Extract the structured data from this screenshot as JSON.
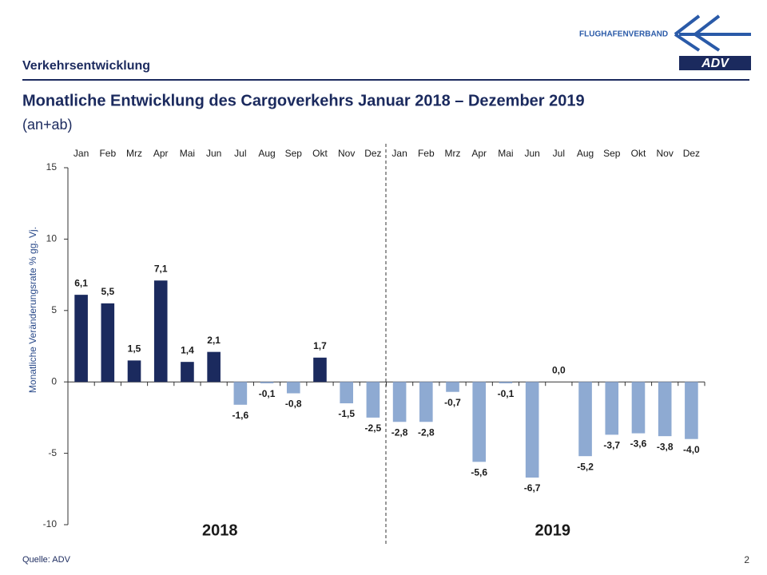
{
  "header": {
    "section": "Verkehrsentwicklung",
    "org": "FLUGHAFENVERBAND",
    "logo": "ADV"
  },
  "chart_data": {
    "type": "bar",
    "title": "Monatliche Entwicklung des Cargoverkehrs Januar 2018 – Dezember 2019",
    "subtitle": "(an+ab)",
    "y_label": "Monatliche Veränderungsrate % gg. Vj.",
    "groups": [
      "2018",
      "2019"
    ],
    "categories": [
      "Jan",
      "Feb",
      "Mrz",
      "Apr",
      "Mai",
      "Jun",
      "Jul",
      "Aug",
      "Sep",
      "Okt",
      "Nov",
      "Dez",
      "Jan",
      "Feb",
      "Mrz",
      "Apr",
      "Mai",
      "Jun",
      "Jul",
      "Aug",
      "Sep",
      "Okt",
      "Nov",
      "Dez"
    ],
    "values": [
      6.1,
      5.5,
      1.5,
      7.1,
      1.4,
      2.1,
      -1.6,
      -0.1,
      -0.8,
      1.7,
      -1.5,
      -2.5,
      -2.8,
      -2.8,
      -0.7,
      -5.6,
      -0.1,
      -6.7,
      0.0,
      -5.2,
      -3.7,
      -3.6,
      -3.8,
      -4.0
    ],
    "value_labels": [
      "6,1",
      "5,5",
      "1,5",
      "7,1",
      "1,4",
      "2,1",
      "-1,6",
      "-0,1",
      "-0,8",
      "1,7",
      "-1,5",
      "-2,5",
      "-2,8",
      "-2,8",
      "-0,7",
      "-5,6",
      "-0,1",
      "-6,7",
      "0,0",
      "-5,2",
      "-3,7",
      "-3,6",
      "-3,8",
      "-4,0"
    ],
    "positive_color": "#1b2a5e",
    "negative_color": "#8eaad2",
    "ylim": [
      -10,
      15
    ],
    "yticks": [
      -10,
      -5,
      0,
      5,
      10,
      15
    ]
  },
  "footer": {
    "source": "Quelle: ADV",
    "page": "2"
  }
}
